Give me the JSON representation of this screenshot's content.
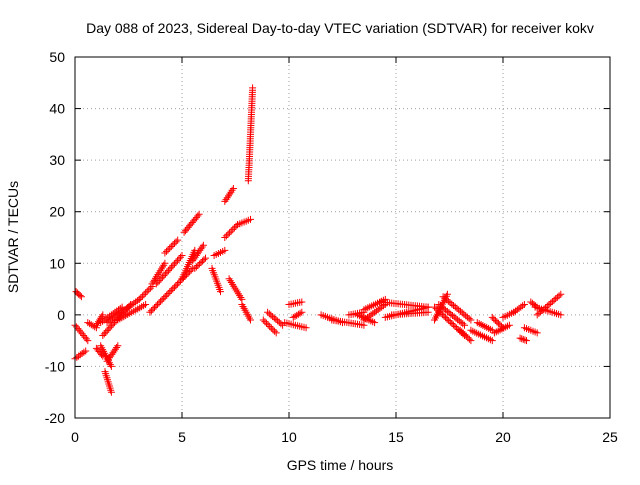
{
  "chart_data": {
    "type": "scatter",
    "title": "Day 088 of 2023, Sidereal Day-to-day VTEC variation (SDTVAR) for receiver kokv",
    "xlabel": "GPS time / hours",
    "ylabel": "SDTVAR / TECUs",
    "xlim": [
      0,
      25
    ],
    "ylim": [
      -20,
      50
    ],
    "xticks": [
      0,
      5,
      10,
      15,
      20,
      25
    ],
    "yticks": [
      -20,
      -10,
      0,
      10,
      20,
      30,
      40,
      50
    ],
    "grid": true,
    "marker": "+",
    "color": "#ff0000",
    "segments": [
      {
        "x0": 0.05,
        "x1": 0.3,
        "y0": 4.5,
        "y1": 3.5
      },
      {
        "x0": 0.0,
        "x1": 0.6,
        "y0": -2,
        "y1": -5
      },
      {
        "x0": 0.0,
        "x1": 0.5,
        "y0": -8.5,
        "y1": -7
      },
      {
        "x0": 0.6,
        "x1": 1.0,
        "y0": -1.5,
        "y1": -2.5
      },
      {
        "x0": 1.0,
        "x1": 1.3,
        "y0": -2,
        "y1": 0
      },
      {
        "x0": 1.0,
        "x1": 1.3,
        "y0": -6.5,
        "y1": -8
      },
      {
        "x0": 1.2,
        "x1": 1.7,
        "y0": -6,
        "y1": -10
      },
      {
        "x0": 1.4,
        "x1": 1.7,
        "y0": -11,
        "y1": -15
      },
      {
        "x0": 1.5,
        "x1": 2.0,
        "y0": -9,
        "y1": -6
      },
      {
        "x0": 1.2,
        "x1": 2.2,
        "y0": -1.5,
        "y1": 1.5
      },
      {
        "x0": 1.3,
        "x1": 2.6,
        "y0": -4,
        "y1": 2
      },
      {
        "x0": 1.5,
        "x1": 3.0,
        "y0": -1.5,
        "y1": 3
      },
      {
        "x0": 2.0,
        "x1": 3.3,
        "y0": -1,
        "y1": 2
      },
      {
        "x0": 3.0,
        "x1": 3.6,
        "y0": 3,
        "y1": 5.5
      },
      {
        "x0": 3.6,
        "x1": 4.2,
        "y0": 6,
        "y1": 10
      },
      {
        "x0": 3.8,
        "x1": 5.0,
        "y0": 6,
        "y1": 11.5
      },
      {
        "x0": 4.2,
        "x1": 4.8,
        "y0": 12,
        "y1": 14.5
      },
      {
        "x0": 3.5,
        "x1": 5.5,
        "y0": 0.5,
        "y1": 9
      },
      {
        "x0": 5.0,
        "x1": 5.6,
        "y0": 7,
        "y1": 12.5
      },
      {
        "x0": 5.1,
        "x1": 5.8,
        "y0": 16,
        "y1": 19.5
      },
      {
        "x0": 5.5,
        "x1": 6.0,
        "y0": 10.5,
        "y1": 13.5
      },
      {
        "x0": 5.6,
        "x1": 6.1,
        "y0": 9,
        "y1": 11
      },
      {
        "x0": 6.4,
        "x1": 6.8,
        "y0": 9,
        "y1": 4.5
      },
      {
        "x0": 6.5,
        "x1": 7.0,
        "y0": 11.5,
        "y1": 12.5
      },
      {
        "x0": 7.0,
        "x1": 7.4,
        "y0": 22,
        "y1": 24.5
      },
      {
        "x0": 7.0,
        "x1": 7.6,
        "y0": 15,
        "y1": 17.5
      },
      {
        "x0": 7.6,
        "x1": 8.2,
        "y0": 17.5,
        "y1": 18.5
      },
      {
        "x0": 7.2,
        "x1": 7.8,
        "y0": 7,
        "y1": 3
      },
      {
        "x0": 7.8,
        "x1": 8.2,
        "y0": 2,
        "y1": -1
      },
      {
        "x0": 8.1,
        "x1": 8.3,
        "y0": 26,
        "y1": 44
      },
      {
        "x0": 8.8,
        "x1": 9.4,
        "y0": -1,
        "y1": -3.5
      },
      {
        "x0": 9.0,
        "x1": 9.7,
        "y0": 0.5,
        "y1": -2
      },
      {
        "x0": 10.0,
        "x1": 10.6,
        "y0": 2,
        "y1": 2.5
      },
      {
        "x0": 9.8,
        "x1": 10.8,
        "y0": -1.5,
        "y1": -2.5
      },
      {
        "x0": 10.2,
        "x1": 10.6,
        "y0": -0.5,
        "y1": 0.5
      },
      {
        "x0": 11.5,
        "x1": 12.5,
        "y0": 0,
        "y1": -1.5
      },
      {
        "x0": 12.0,
        "x1": 13.5,
        "y0": -1,
        "y1": -2
      },
      {
        "x0": 12.8,
        "x1": 13.5,
        "y0": 0,
        "y1": 0.5
      },
      {
        "x0": 13.2,
        "x1": 14.0,
        "y0": 0,
        "y1": -1.5
      },
      {
        "x0": 13.5,
        "x1": 14.5,
        "y0": -1,
        "y1": 2
      },
      {
        "x0": 13.5,
        "x1": 14.5,
        "y0": 1,
        "y1": 3
      },
      {
        "x0": 14.3,
        "x1": 16.5,
        "y0": 2.5,
        "y1": 1.5
      },
      {
        "x0": 14.5,
        "x1": 16.5,
        "y0": -0.5,
        "y1": 1.5
      },
      {
        "x0": 14.8,
        "x1": 16.5,
        "y0": 0,
        "y1": 0.5
      },
      {
        "x0": 16.8,
        "x1": 17.4,
        "y0": -1,
        "y1": 4
      },
      {
        "x0": 16.8,
        "x1": 18.2,
        "y0": 1.5,
        "y1": -4
      },
      {
        "x0": 17.0,
        "x1": 18.2,
        "y0": 2,
        "y1": -2
      },
      {
        "x0": 17.2,
        "x1": 18.5,
        "y0": 3.5,
        "y1": -1
      },
      {
        "x0": 18.0,
        "x1": 18.5,
        "y0": -3,
        "y1": -5
      },
      {
        "x0": 18.5,
        "x1": 19.5,
        "y0": -3,
        "y1": -5
      },
      {
        "x0": 18.8,
        "x1": 19.5,
        "y0": -1.5,
        "y1": -3
      },
      {
        "x0": 19.5,
        "x1": 20.0,
        "y0": -0.5,
        "y1": -2.5
      },
      {
        "x0": 19.6,
        "x1": 20.3,
        "y0": -3.5,
        "y1": -2
      },
      {
        "x0": 20.0,
        "x1": 20.5,
        "y0": -0.5,
        "y1": 0.5
      },
      {
        "x0": 20.5,
        "x1": 21.0,
        "y0": 0.5,
        "y1": 2
      },
      {
        "x0": 20.8,
        "x1": 21.1,
        "y0": -4.5,
        "y1": -5
      },
      {
        "x0": 21.0,
        "x1": 21.6,
        "y0": -2.5,
        "y1": -3.5
      },
      {
        "x0": 21.3,
        "x1": 21.6,
        "y0": 2.5,
        "y1": 1.5
      },
      {
        "x0": 21.5,
        "x1": 22.7,
        "y0": 1.5,
        "y1": 0
      },
      {
        "x0": 21.6,
        "x1": 22.7,
        "y0": 0,
        "y1": 4
      }
    ]
  }
}
